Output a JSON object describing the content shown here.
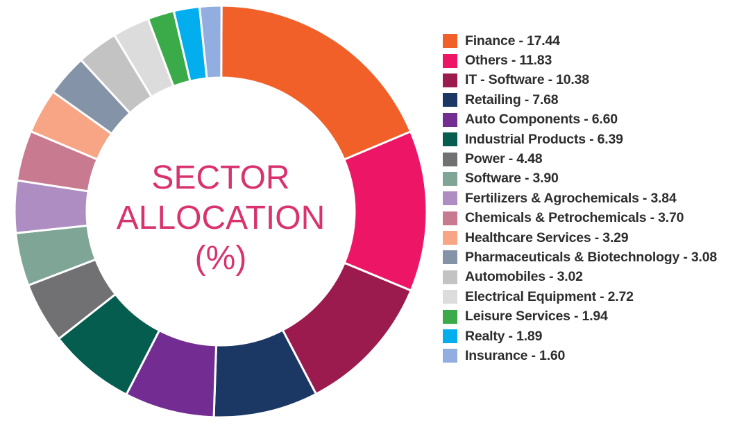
{
  "chart_data": {
    "type": "pie",
    "title_lines": [
      "SECTOR",
      "ALLOCATION",
      "(%)"
    ],
    "legend_position": "right",
    "slices": [
      {
        "label": "Finance",
        "value": 17.44,
        "color": "#f16028",
        "text": "Finance - 17.44"
      },
      {
        "label": "Others",
        "value": 11.83,
        "color": "#ec1566",
        "text": "Others - 11.83"
      },
      {
        "label": "IT - Software",
        "value": 10.38,
        "color": "#9b1b4e",
        "text": "IT - Software - 10.38"
      },
      {
        "label": "Retailing",
        "value": 7.68,
        "color": "#1b3763",
        "text": "Retailing - 7.68"
      },
      {
        "label": "Auto Components",
        "value": 6.6,
        "color": "#732c91",
        "text": "Auto Components - 6.60"
      },
      {
        "label": "Industrial Products",
        "value": 6.39,
        "color": "#045d4f",
        "text": "Industrial Products - 6.39"
      },
      {
        "label": "Power",
        "value": 4.48,
        "color": "#717072",
        "text": "Power - 4.48"
      },
      {
        "label": "Software",
        "value": 3.9,
        "color": "#7fa596",
        "text": "Software - 3.90"
      },
      {
        "label": "Fertilizers & Agrochemicals",
        "value": 3.84,
        "color": "#ad8dc2",
        "text": "Fertilizers & Agrochemicals - 3.84"
      },
      {
        "label": "Chemicals & Petrochemicals",
        "value": 3.7,
        "color": "#c87a91",
        "text": "Chemicals & Petrochemicals - 3.70"
      },
      {
        "label": "Healthcare Services",
        "value": 3.29,
        "color": "#f7a584",
        "text": "Healthcare Services - 3.29"
      },
      {
        "label": "Pharmaceuticals & Biotechnology",
        "value": 3.08,
        "color": "#8593a9",
        "text": "Pharmaceuticals & Biotechnology - 3.08"
      },
      {
        "label": "Automobiles",
        "value": 3.02,
        "color": "#c3c3c3",
        "text": "Automobiles - 3.02"
      },
      {
        "label": "Electrical Equipment",
        "value": 2.72,
        "color": "#dcdcdc",
        "text": "Electrical Equipment - 2.72"
      },
      {
        "label": "Leisure Services",
        "value": 1.94,
        "color": "#3bab49",
        "text": "Leisure Services - 1.94"
      },
      {
        "label": "Realty",
        "value": 1.89,
        "color": "#02aeee",
        "text": "Realty - 1.89"
      },
      {
        "label": "Insurance",
        "value": 1.6,
        "color": "#92addf",
        "text": "Insurance - 1.60"
      }
    ]
  }
}
